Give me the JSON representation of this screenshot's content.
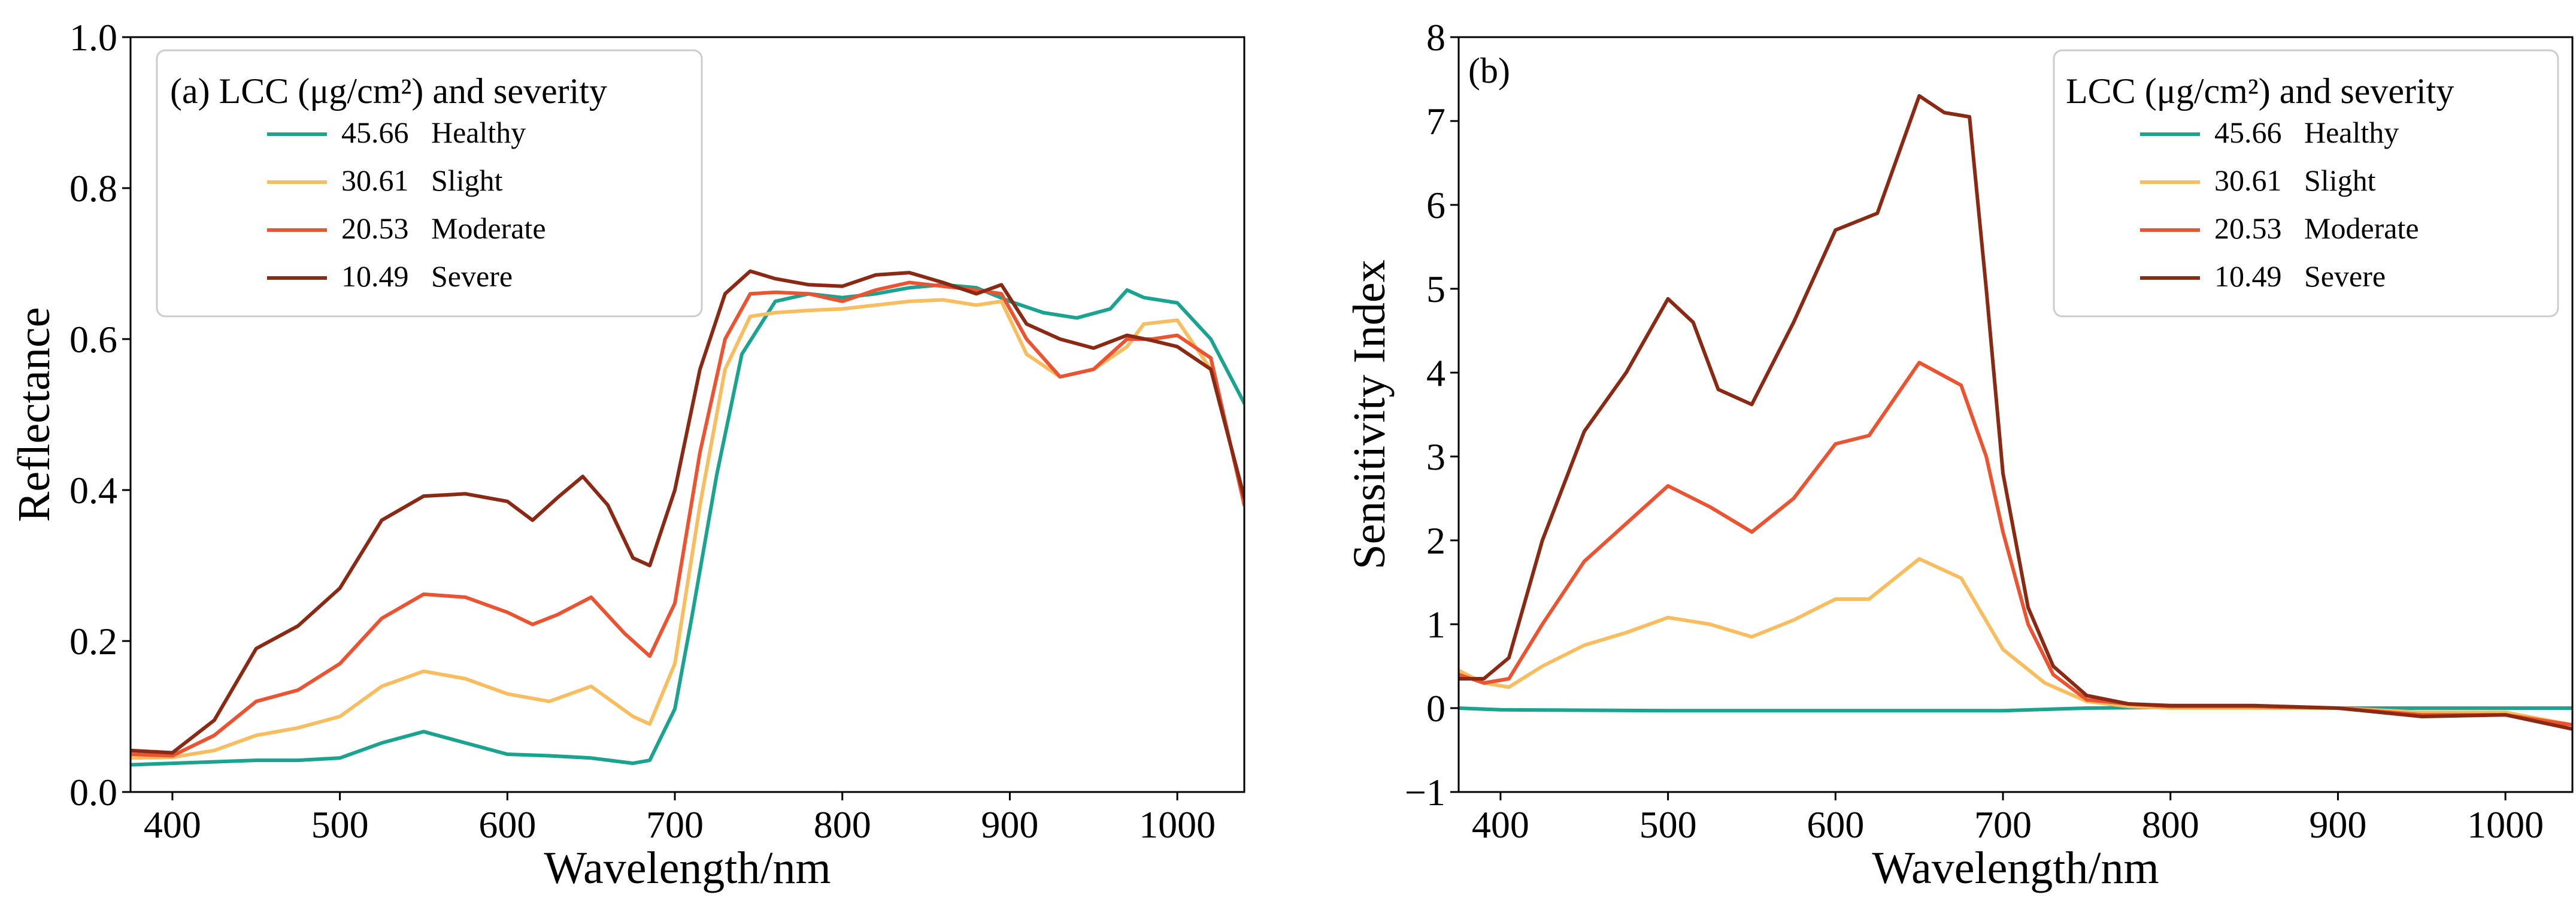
{
  "colors": {
    "healthy": "#1aa38f",
    "slight": "#f7bd5e",
    "moderate": "#ec5331",
    "severe": "#8b2a14"
  },
  "chart_data": [
    {
      "type": "line",
      "panel_label": "(a)",
      "xlabel": "Wavelength/nm",
      "ylabel": "Reflectance",
      "xlim": [
        375,
        1040
      ],
      "ylim": [
        0.0,
        1.0
      ],
      "x_ticks": [
        400,
        500,
        600,
        700,
        800,
        900,
        1000
      ],
      "y_ticks": [
        "0.0",
        "0.2",
        "0.4",
        "0.6",
        "0.8",
        "1.0"
      ],
      "legend": {
        "title": "(a) LCC (μg/cm²) and severity",
        "placement": "top-left",
        "entries": [
          {
            "value": "45.66",
            "label": "Healthy"
          },
          {
            "value": "30.61",
            "label": "Slight"
          },
          {
            "value": "20.53",
            "label": "Moderate"
          },
          {
            "value": "10.49",
            "label": "Severe"
          }
        ]
      },
      "series": [
        {
          "name": "45.66 Healthy",
          "color_key": "healthy",
          "x": [
            375,
            400,
            425,
            450,
            475,
            500,
            525,
            550,
            575,
            600,
            625,
            650,
            675,
            685,
            700,
            710,
            725,
            740,
            760,
            780,
            800,
            820,
            840,
            860,
            880,
            900,
            920,
            940,
            960,
            970,
            980,
            1000,
            1020,
            1040
          ],
          "y": [
            0.036,
            0.038,
            0.04,
            0.042,
            0.042,
            0.045,
            0.065,
            0.08,
            0.065,
            0.05,
            0.048,
            0.045,
            0.038,
            0.042,
            0.11,
            0.23,
            0.42,
            0.58,
            0.65,
            0.66,
            0.655,
            0.66,
            0.668,
            0.672,
            0.668,
            0.65,
            0.635,
            0.628,
            0.64,
            0.665,
            0.655,
            0.648,
            0.6,
            0.515
          ]
        },
        {
          "name": "30.61 Slight",
          "color_key": "slight",
          "x": [
            375,
            400,
            425,
            450,
            475,
            500,
            525,
            550,
            575,
            600,
            625,
            650,
            675,
            685,
            700,
            715,
            730,
            745,
            760,
            780,
            800,
            820,
            840,
            860,
            880,
            895,
            910,
            930,
            950,
            970,
            980,
            1000,
            1020,
            1040
          ],
          "y": [
            0.045,
            0.046,
            0.055,
            0.075,
            0.085,
            0.1,
            0.14,
            0.16,
            0.15,
            0.13,
            0.12,
            0.14,
            0.1,
            0.09,
            0.17,
            0.38,
            0.56,
            0.63,
            0.635,
            0.638,
            0.64,
            0.645,
            0.65,
            0.652,
            0.645,
            0.65,
            0.58,
            0.55,
            0.56,
            0.59,
            0.62,
            0.625,
            0.56,
            0.39
          ]
        },
        {
          "name": "20.53 Moderate",
          "color_key": "moderate",
          "x": [
            375,
            400,
            425,
            450,
            475,
            500,
            525,
            550,
            575,
            600,
            615,
            630,
            650,
            670,
            685,
            700,
            715,
            730,
            745,
            760,
            780,
            800,
            820,
            840,
            860,
            880,
            895,
            910,
            930,
            950,
            970,
            985,
            1000,
            1020,
            1040
          ],
          "y": [
            0.05,
            0.048,
            0.075,
            0.12,
            0.135,
            0.17,
            0.23,
            0.262,
            0.258,
            0.238,
            0.222,
            0.235,
            0.258,
            0.21,
            0.18,
            0.25,
            0.45,
            0.6,
            0.66,
            0.662,
            0.66,
            0.65,
            0.665,
            0.675,
            0.67,
            0.665,
            0.66,
            0.6,
            0.55,
            0.56,
            0.6,
            0.6,
            0.605,
            0.575,
            0.38
          ]
        },
        {
          "name": "10.49 Severe",
          "color_key": "severe",
          "x": [
            375,
            400,
            425,
            450,
            475,
            500,
            525,
            550,
            575,
            600,
            615,
            630,
            645,
            660,
            675,
            685,
            700,
            715,
            730,
            745,
            760,
            780,
            800,
            820,
            840,
            860,
            880,
            895,
            910,
            930,
            950,
            970,
            985,
            1000,
            1020,
            1040
          ],
          "y": [
            0.055,
            0.052,
            0.095,
            0.19,
            0.22,
            0.27,
            0.36,
            0.392,
            0.395,
            0.385,
            0.36,
            0.39,
            0.418,
            0.38,
            0.31,
            0.3,
            0.4,
            0.56,
            0.66,
            0.69,
            0.68,
            0.672,
            0.67,
            0.685,
            0.688,
            0.675,
            0.66,
            0.672,
            0.62,
            0.6,
            0.588,
            0.605,
            0.598,
            0.59,
            0.56,
            0.39
          ]
        }
      ]
    },
    {
      "type": "line",
      "panel_label": "(b)",
      "xlabel": "Wavelength/nm",
      "ylabel": "Sensitivity Index",
      "xlim": [
        375,
        1040
      ],
      "ylim": [
        -1,
        8
      ],
      "x_ticks": [
        400,
        500,
        600,
        700,
        800,
        900,
        1000
      ],
      "y_ticks": [
        "−1",
        "0",
        "1",
        "2",
        "3",
        "4",
        "5",
        "6",
        "7",
        "8"
      ],
      "legend": {
        "title": "LCC (μg/cm²) and severity",
        "placement": "top-right",
        "entries": [
          {
            "value": "45.66",
            "label": "Healthy"
          },
          {
            "value": "30.61",
            "label": "Slight"
          },
          {
            "value": "20.53",
            "label": "Moderate"
          },
          {
            "value": "10.49",
            "label": "Severe"
          }
        ]
      },
      "series": [
        {
          "name": "45.66 Healthy",
          "color_key": "healthy",
          "x": [
            375,
            400,
            500,
            600,
            700,
            750,
            800,
            900,
            1000,
            1040
          ],
          "y": [
            0.0,
            -0.02,
            -0.03,
            -0.03,
            -0.03,
            0.0,
            0.01,
            0.0,
            0.0,
            0.0
          ]
        },
        {
          "name": "30.61 Slight",
          "color_key": "slight",
          "x": [
            375,
            390,
            405,
            425,
            450,
            475,
            500,
            525,
            550,
            575,
            600,
            620,
            650,
            675,
            700,
            725,
            750,
            775,
            800,
            850,
            900,
            950,
            1000,
            1040
          ],
          "y": [
            0.45,
            0.3,
            0.25,
            0.5,
            0.75,
            0.9,
            1.08,
            1.0,
            0.85,
            1.05,
            1.3,
            1.3,
            1.78,
            1.55,
            0.7,
            0.3,
            0.08,
            0.02,
            0.0,
            0.0,
            0.0,
            -0.05,
            -0.05,
            -0.2
          ]
        },
        {
          "name": "20.53 Moderate",
          "color_key": "moderate",
          "x": [
            375,
            390,
            405,
            425,
            450,
            475,
            500,
            525,
            550,
            575,
            600,
            620,
            650,
            675,
            690,
            700,
            715,
            730,
            750,
            775,
            800,
            850,
            900,
            950,
            1000,
            1040
          ],
          "y": [
            0.4,
            0.3,
            0.35,
            1.0,
            1.75,
            2.2,
            2.65,
            2.4,
            2.1,
            2.5,
            3.15,
            3.25,
            4.12,
            3.85,
            3.0,
            2.1,
            1.0,
            0.4,
            0.1,
            0.05,
            0.02,
            0.02,
            0.0,
            -0.08,
            -0.08,
            -0.2
          ]
        },
        {
          "name": "10.49 Severe",
          "color_key": "severe",
          "x": [
            375,
            390,
            405,
            425,
            450,
            475,
            500,
            515,
            530,
            550,
            575,
            600,
            625,
            650,
            665,
            680,
            690,
            700,
            715,
            730,
            750,
            775,
            800,
            850,
            900,
            950,
            1000,
            1040
          ],
          "y": [
            0.35,
            0.35,
            0.6,
            2.0,
            3.3,
            4.0,
            4.88,
            4.6,
            3.8,
            3.62,
            4.6,
            5.7,
            5.9,
            7.3,
            7.1,
            7.05,
            5.0,
            2.8,
            1.2,
            0.5,
            0.15,
            0.05,
            0.03,
            0.03,
            0.0,
            -0.1,
            -0.08,
            -0.25
          ]
        }
      ]
    }
  ]
}
